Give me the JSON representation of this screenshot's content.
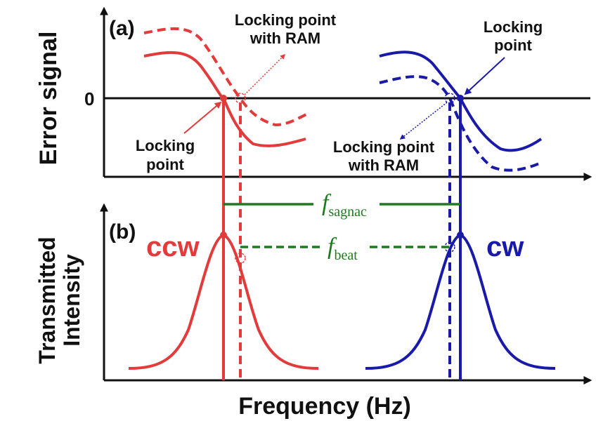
{
  "panel_a": {
    "tag": "(a)",
    "ylabel": "Error signal",
    "zero_label": "0",
    "locking_point_ram_top": [
      "Locking point",
      "with RAM"
    ],
    "locking_point_top": [
      "Locking",
      "point"
    ],
    "locking_point_left": [
      "Locking",
      "point"
    ],
    "locking_point_ram_bottom": [
      "Locking point",
      "with RAM"
    ]
  },
  "panel_b": {
    "tag": "(b)",
    "ylabel": [
      "Transmitted",
      "Intensity"
    ],
    "ccw_label": "ccw",
    "cw_label": "cw",
    "f_sagnac": {
      "symbol": "f",
      "subscript": "sagnac"
    },
    "f_beat": {
      "symbol": "f",
      "subscript": "beat"
    }
  },
  "xlabel": "Frequency (Hz)",
  "colors": {
    "ccw": "#e23b3b",
    "cw": "#1a1aa8",
    "green": "#1e7a1e",
    "axis": "#111111"
  }
}
